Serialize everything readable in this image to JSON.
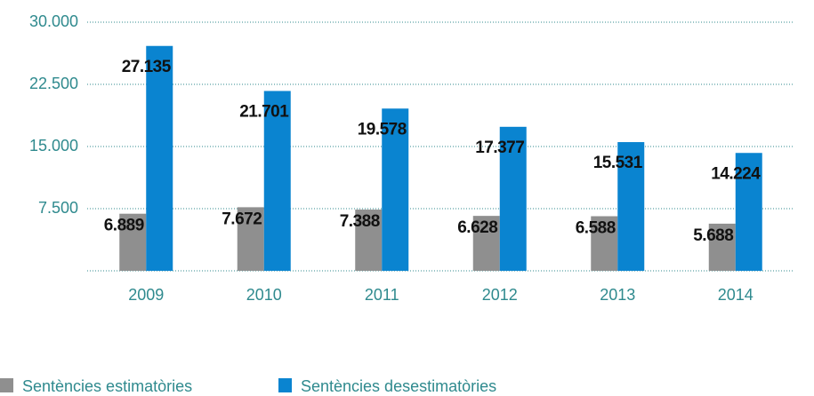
{
  "chart_data": {
    "type": "bar",
    "categories": [
      "2009",
      "2010",
      "2011",
      "2012",
      "2013",
      "2014"
    ],
    "series": [
      {
        "name": "Sentències estimatòries",
        "color": "#8f8f8f",
        "values": [
          6889,
          7672,
          7388,
          6628,
          6588,
          5688
        ],
        "value_labels": [
          "6.889",
          "7.672",
          "7.388",
          "6.628",
          "6.588",
          "5.688"
        ]
      },
      {
        "name": "Sentències desestimatòries",
        "color": "#0a84d0",
        "values": [
          27135,
          21701,
          19578,
          17377,
          15531,
          14224
        ],
        "value_labels": [
          "27.135",
          "21.701",
          "19.578",
          "17.377",
          "15.531",
          "14.224"
        ]
      }
    ],
    "ylim": [
      0,
      30000
    ],
    "yticks": [
      {
        "value": 7500,
        "label": "7.500"
      },
      {
        "value": 15000,
        "label": "15.000"
      },
      {
        "value": 22500,
        "label": "22.500"
      },
      {
        "value": 30000,
        "label": "30.000"
      }
    ],
    "grid": true,
    "legend": "bottom"
  }
}
